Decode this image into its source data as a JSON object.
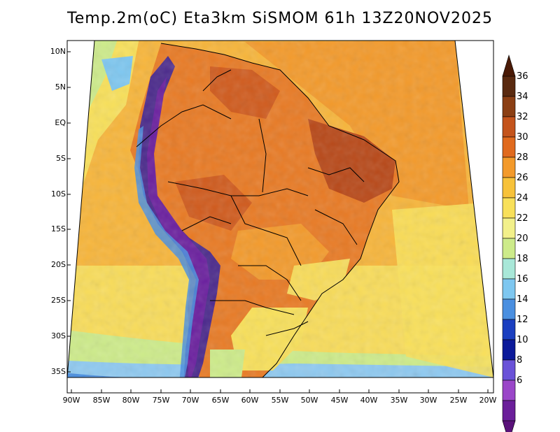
{
  "title": "Temp.2m(oC) Eta3km SiSMOM 61h 13Z20NOV2025",
  "lat_labels": [
    "10N",
    "5N",
    "EQ",
    "5S",
    "10S",
    "15S",
    "20S",
    "25S",
    "30S",
    "35S"
  ],
  "lon_labels": [
    "90W",
    "85W",
    "80W",
    "75W",
    "70W",
    "65W",
    "60W",
    "55W",
    "50W",
    "45W",
    "40W",
    "35W",
    "30W",
    "25W",
    "20W"
  ],
  "colorbar": {
    "labels": [
      "36",
      "34",
      "32",
      "30",
      "28",
      "26",
      "24",
      "22",
      "20",
      "18",
      "16",
      "14",
      "12",
      "10",
      "8",
      "6"
    ],
    "colors": [
      "#5a2a10",
      "#8b3f14",
      "#c4541c",
      "#e06a1e",
      "#f39a2b",
      "#f7c23a",
      "#f8e05a",
      "#f2f08a",
      "#cdeb8a",
      "#a8e7d8",
      "#7ec7f0",
      "#4a8fe0",
      "#1b3fc0",
      "#0c1a9a",
      "#6a52d8",
      "#9a46c8",
      "#6b1f9a"
    ],
    "top_arrow_color": "#4a1a06",
    "bottom_arrow_color": "#5a127a"
  },
  "colors": {
    "ocean_warm": "#f7b53a",
    "ocean_mild": "#f8dc5a",
    "ocean_cool": "#cdeb8a",
    "ocean_cold": "#8ec9f0",
    "land_hot": "#e87a24",
    "land_very_hot": "#b84818",
    "andes_cold": "#4b2a8c",
    "andes_coldest": "#6a1f9e"
  }
}
